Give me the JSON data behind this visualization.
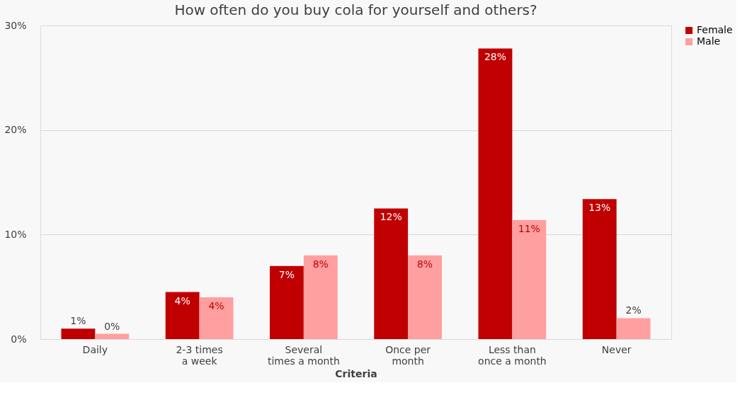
{
  "chart_data": {
    "type": "bar",
    "title": "How often do you buy cola for yourself and others?",
    "xlabel": "Criteria",
    "categories": [
      "Daily",
      "2-3 times a week",
      "Several times a month",
      "Once per month",
      "Less than once a month",
      "Never"
    ],
    "series": [
      {
        "name": "Female",
        "color": "#c00000",
        "values": [
          1.0,
          4.5,
          7.0,
          12.5,
          27.8,
          13.4
        ],
        "value_labels": [
          "1%",
          "4%",
          "7%",
          "12%",
          "28%",
          "13%"
        ]
      },
      {
        "name": "Male",
        "color": "#ff9f9f",
        "values": [
          0.5,
          4.0,
          8.0,
          8.0,
          11.4,
          2.0
        ],
        "value_labels": [
          "0%",
          "4%",
          "8%",
          "8%",
          "11%",
          "2%"
        ]
      }
    ],
    "ylim": [
      0,
      30
    ],
    "yticks": [
      {
        "value": 0,
        "label": "0%"
      },
      {
        "value": 10,
        "label": "10%"
      },
      {
        "value": 20,
        "label": "20%"
      },
      {
        "value": 30,
        "label": "30%"
      }
    ],
    "grid": "y",
    "legend": "right"
  }
}
